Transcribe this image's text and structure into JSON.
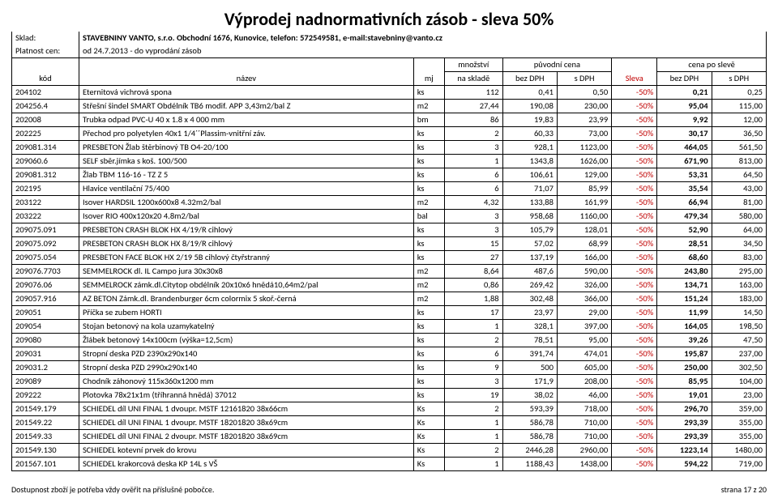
{
  "title": "Výprodej nadnormativních zásob - sleva 50%",
  "header_rows": {
    "sklad_label": "Sklad:",
    "sklad_value": "STAVEBNINY VANTO, s.r.o. Obchodní 1676, Kunovice, telefon: 572549581, e-mail:stavebniny@vanto.cz",
    "platnost_label": "Platnost cen:",
    "platnost_value": "od 24.7.2013 - do vyprodání zásob"
  },
  "col_hdr_top": {
    "mnozstvi": "množství",
    "puvodni": "původní cena",
    "sleva_po": "cena po slevě"
  },
  "col_hdr": {
    "kod": "kód",
    "nazev": "název",
    "mj": "mj",
    "sklad": "na skladě",
    "bezDPH": "bez DPH",
    "sDPH": "s DPH",
    "sleva": "Sleva",
    "bezDPH2": "bez DPH",
    "sDPH2": "s DPH"
  },
  "rows": [
    {
      "kod": "204102",
      "nazev": "Eternitová vichrová spona",
      "mj": "ks",
      "skl": "112",
      "b": "0,41",
      "s": "0,50",
      "d": "-50%",
      "b2": "0,21",
      "s2": "0,25"
    },
    {
      "kod": "204256.4",
      "nazev": "Střešní šindel SMART Obdélník TB6 modif. APP 3,43m2/bal Z",
      "mj": "m2",
      "skl": "27,44",
      "b": "190,08",
      "s": "230,00",
      "d": "-50%",
      "b2": "95,04",
      "s2": "115,00"
    },
    {
      "kod": "202008",
      "nazev": "Trubka odpad PVC-U 40 x 1.8 x 4 000 mm",
      "mj": "bm",
      "skl": "86",
      "b": "19,83",
      "s": "23,99",
      "d": "-50%",
      "b2": "9,92",
      "s2": "12,00"
    },
    {
      "kod": "202225",
      "nazev": "Přechod pro polyetylen 40x1 1/4´´Plassim-vnitřní záv.",
      "mj": "ks",
      "skl": "2",
      "b": "60,33",
      "s": "73,00",
      "d": "-50%",
      "b2": "30,17",
      "s2": "36,50"
    },
    {
      "kod": "209081.314",
      "nazev": "PRESBETON Žlab štěrbinový TB O4-20/100",
      "mj": "ks",
      "skl": "3",
      "b": "928,1",
      "s": "1123,00",
      "d": "-50%",
      "b2": "464,05",
      "s2": "561,50"
    },
    {
      "kod": "209060.6",
      "nazev": "SELF sběr.jímka s koš. 100/500",
      "mj": "ks",
      "skl": "1",
      "b": "1343,8",
      "s": "1626,00",
      "d": "-50%",
      "b2": "671,90",
      "s2": "813,00"
    },
    {
      "kod": "209081.312",
      "nazev": "Žlab TBM 116-16 - TZ Z 5",
      "mj": "ks",
      "skl": "6",
      "b": "106,61",
      "s": "129,00",
      "d": "-50%",
      "b2": "53,31",
      "s2": "64,50"
    },
    {
      "kod": "202195",
      "nazev": "Hlavice ventilační 75/400",
      "mj": "ks",
      "skl": "6",
      "b": "71,07",
      "s": "85,99",
      "d": "-50%",
      "b2": "35,54",
      "s2": "43,00"
    },
    {
      "kod": "203122",
      "nazev": "Isover HARDSIL 1200x600x8   4.32m2/bal",
      "mj": "m2",
      "skl": "4,32",
      "b": "133,88",
      "s": "161,99",
      "d": "-50%",
      "b2": "66,94",
      "s2": "81,00"
    },
    {
      "kod": "203222",
      "nazev": "Isover RIO  400x120x20  4.8m2/bal",
      "mj": "bal",
      "skl": "3",
      "b": "958,68",
      "s": "1160,00",
      "d": "-50%",
      "b2": "479,34",
      "s2": "580,00"
    },
    {
      "kod": "209075.091",
      "nazev": "PRESBETON  CRASH BLOK HX 4/19/R cihlový",
      "mj": "ks",
      "skl": "3",
      "b": "105,79",
      "s": "128,01",
      "d": "-50%",
      "b2": "52,90",
      "s2": "64,00"
    },
    {
      "kod": "209075.092",
      "nazev": "PRESBETON  CRASH BLOK HX 8/19/R cihlový",
      "mj": "ks",
      "skl": "15",
      "b": "57,02",
      "s": "68,99",
      "d": "-50%",
      "b2": "28,51",
      "s2": "34,50"
    },
    {
      "kod": "209075.054",
      "nazev": "PRESBETON  FACE BLOK HX 2/19 5B cihlový čtyřstranný",
      "mj": "ks",
      "skl": "27",
      "b": "137,19",
      "s": "166,00",
      "d": "-50%",
      "b2": "68,60",
      "s2": "83,00"
    },
    {
      "kod": "209076.7703",
      "nazev": "SEMMELROCK dl. IL Campo jura  30x30x8",
      "mj": "m2",
      "skl": "8,64",
      "b": "487,6",
      "s": "590,00",
      "d": "-50%",
      "b2": "243,80",
      "s2": "295,00"
    },
    {
      "kod": "209076.06",
      "nazev": "SEMMELROCK zámk.dl.Citytop obdélník 20x10x6 hnědá10,64m2/pal",
      "mj": "m2",
      "skl": "0,86",
      "b": "269,42",
      "s": "326,00",
      "d": "-50%",
      "b2": "134,71",
      "s2": "163,00"
    },
    {
      "kod": "209057.916",
      "nazev": "AZ BETON Zámk.dl. Brandenburger 6cm colormix 5 skoř.-černá",
      "mj": "m2",
      "skl": "1,88",
      "b": "302,48",
      "s": "366,00",
      "d": "-50%",
      "b2": "151,24",
      "s2": "183,00"
    },
    {
      "kod": "209051",
      "nazev": "Příčka se zubem HORTI",
      "mj": "ks",
      "skl": "17",
      "b": "23,97",
      "s": "29,00",
      "d": "-50%",
      "b2": "11,99",
      "s2": "14,50"
    },
    {
      "kod": "209054",
      "nazev": "Stojan betonový  na kola uzamykatelný",
      "mj": "ks",
      "skl": "1",
      "b": "328,1",
      "s": "397,00",
      "d": "-50%",
      "b2": "164,05",
      "s2": "198,50"
    },
    {
      "kod": "209080",
      "nazev": "Žlábek betonový 14x100cm (výška=12,5cm)",
      "mj": "ks",
      "skl": "2",
      "b": "78,51",
      "s": "95,00",
      "d": "-50%",
      "b2": "39,26",
      "s2": "47,50"
    },
    {
      "kod": "209031",
      "nazev": "Stropní deska PZD 2390x290x140",
      "mj": "ks",
      "skl": "6",
      "b": "391,74",
      "s": "474,01",
      "d": "-50%",
      "b2": "195,87",
      "s2": "237,00"
    },
    {
      "kod": "209031.2",
      "nazev": "Stropní deska PZD 2990x290x140",
      "mj": "ks",
      "skl": "9",
      "b": "500",
      "s": "605,00",
      "d": "-50%",
      "b2": "250,00",
      "s2": "302,50"
    },
    {
      "kod": "209089",
      "nazev": "Chodník záhonový  115x360x1200 mm",
      "mj": "ks",
      "skl": "3",
      "b": "171,9",
      "s": "208,00",
      "d": "-50%",
      "b2": "85,95",
      "s2": "104,00"
    },
    {
      "kod": "209222",
      "nazev": "Plotovka 78x21x1m (tříhranná hnědá)            37012",
      "mj": "ks",
      "skl": "19",
      "b": "38,02",
      "s": "46,00",
      "d": "-50%",
      "b2": "19,01",
      "s2": "23,00"
    },
    {
      "kod": "201549.179",
      "nazev": "SCHIEDEL díl UNI FINAL 1 dvoupr. MSTF 12161820  38x66cm",
      "mj": "Ks",
      "skl": "2",
      "b": "593,39",
      "s": "718,00",
      "d": "-50%",
      "b2": "296,70",
      "s2": "359,00"
    },
    {
      "kod": "201549.22",
      "nazev": "SCHIEDEL díl UNI FINAL 1 dvoupr. MSTF 18201820  38x69cm",
      "mj": "Ks",
      "skl": "1",
      "b": "586,78",
      "s": "710,00",
      "d": "-50%",
      "b2": "293,39",
      "s2": "355,00"
    },
    {
      "kod": "201549.33",
      "nazev": "SCHIEDEL díl UNI FINAL 2 dvoupr. MSTF 18201820  38x69cm",
      "mj": "Ks",
      "skl": "1",
      "b": "586,78",
      "s": "710,00",
      "d": "-50%",
      "b2": "293,39",
      "s2": "355,00"
    },
    {
      "kod": "201549.130",
      "nazev": "SCHIEDEL kotevní prvek do krovu",
      "mj": "Ks",
      "skl": "2",
      "b": "2446,28",
      "s": "2960,00",
      "d": "-50%",
      "b2": "1223,14",
      "s2": "1480,00"
    },
    {
      "kod": "201567.101",
      "nazev": "SCHIEDEL krakorcová deska KP 14L s VŠ",
      "mj": "Ks",
      "skl": "1",
      "b": "1188,43",
      "s": "1438,00",
      "d": "-50%",
      "b2": "594,22",
      "s2": "719,00"
    }
  ],
  "footer": {
    "left": "Dostupnost zboží je potřeba vždy ověřit na příslušné pobočce.",
    "right": "strana 17 z 20"
  }
}
